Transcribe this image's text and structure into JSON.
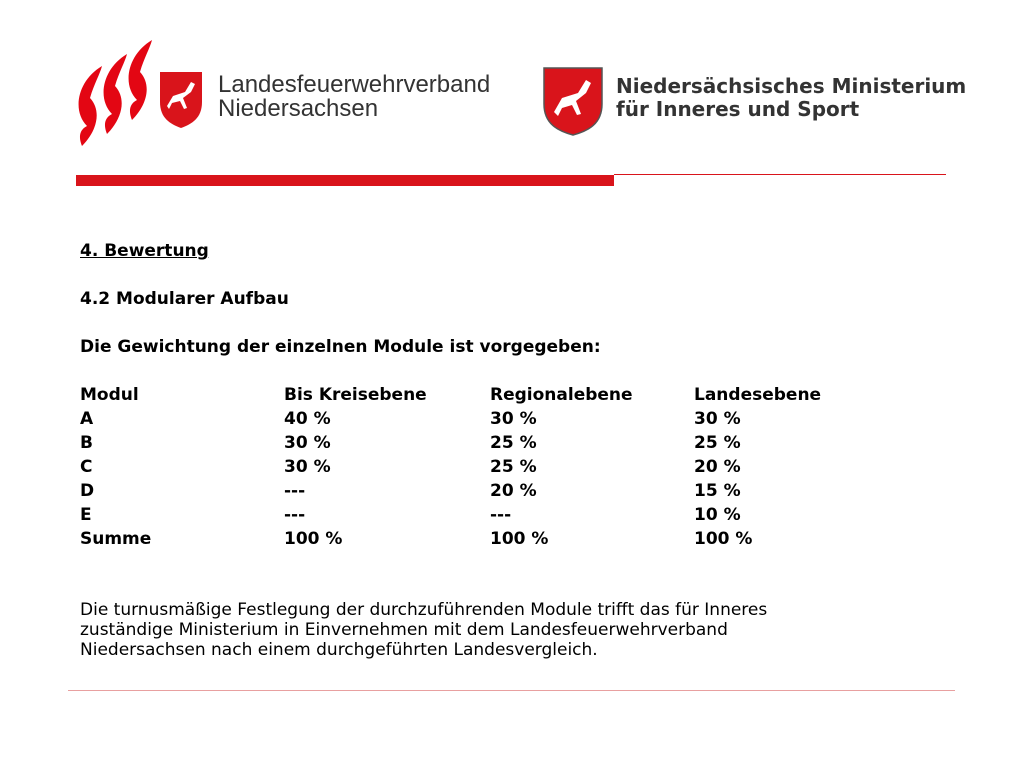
{
  "header": {
    "left_logo": [
      "Landesfeuerwehrverband",
      "Niedersachsen"
    ],
    "right_logo": [
      "Niedersächsisches Ministerium",
      "für Inneres und Sport"
    ]
  },
  "heading": "4. Bewertung",
  "subheading": "4.2 Modularer Aufbau",
  "intro": "Die Gewichtung der einzelnen Module ist vorgegeben:",
  "table": {
    "columns": [
      "Modul",
      "Bis Kreisebene",
      "Regionalebene",
      "Landesebene"
    ],
    "rows": [
      [
        "A",
        "40 %",
        "30 %",
        "30 %"
      ],
      [
        "B",
        "30 %",
        "25 %",
        "25 %"
      ],
      [
        "C",
        "30 %",
        "25 %",
        "20 %"
      ],
      [
        "D",
        "---",
        "20 %",
        "15 %"
      ],
      [
        "E",
        "---",
        "---",
        "10 %"
      ],
      [
        "Summe",
        "100 %",
        "100 %",
        "100 %"
      ]
    ]
  },
  "paragraph": [
    "Die turnusmäßige Festlegung der durchzuführenden Module trifft das für Inneres",
    "zuständige Ministerium in Einvernehmen mit dem Landesfeuerwehrverband",
    "Niedersachsen nach einem durchgeführten Landesvergleich."
  ]
}
